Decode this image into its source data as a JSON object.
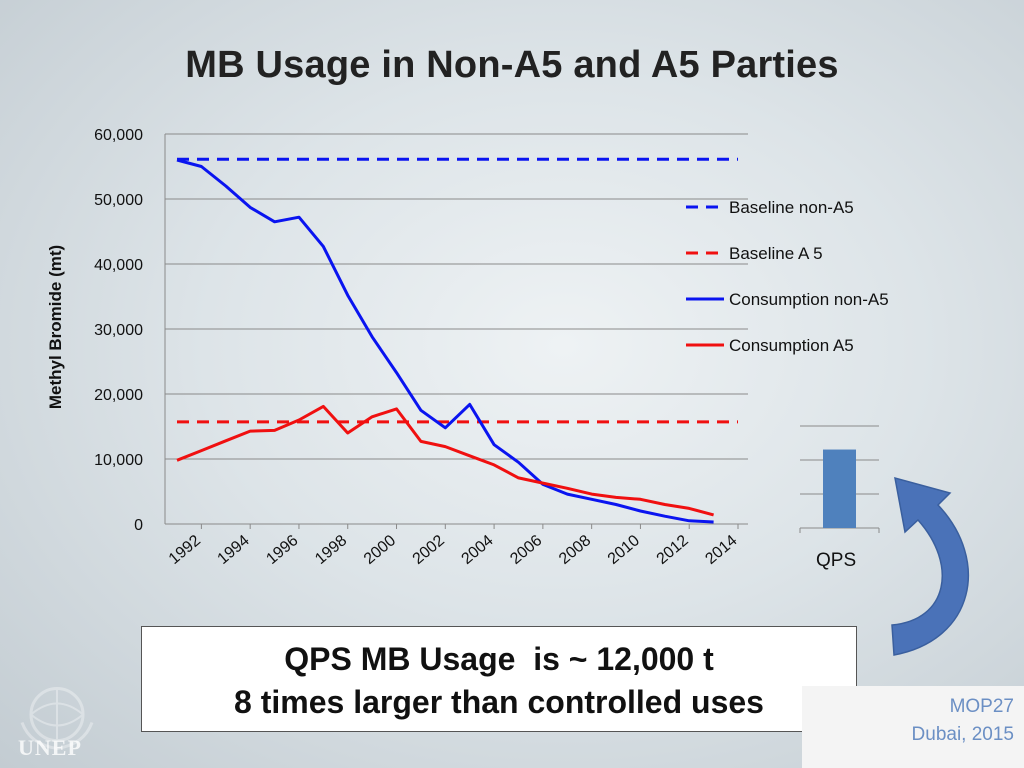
{
  "title": "MB Usage in Non-A5 and A5 Parties",
  "ylabel": "Methyl Bromide (mt)",
  "callout": {
    "line1": "QPS MB Usage  is ~ 12,000 t",
    "line2": "8 times larger than controlled uses"
  },
  "footer": {
    "line1": "MOP27",
    "line2": "Dubai, 2015"
  },
  "logo_text": "UNEP",
  "colors": {
    "blue": "#0a14f0",
    "red": "#f01010",
    "bar": "#4f81bd",
    "arrow": "#4a72b8"
  },
  "chart_data": [
    {
      "type": "line",
      "title": "MB Usage in Non-A5 and A5 Parties",
      "xlabel": "",
      "ylabel": "Methyl Bromide (mt)",
      "x": [
        1991,
        1992,
        1993,
        1994,
        1995,
        1996,
        1997,
        1998,
        1999,
        2000,
        2001,
        2002,
        2003,
        2004,
        2005,
        2006,
        2007,
        2008,
        2009,
        2010,
        2011,
        2012,
        2013,
        2014
      ],
      "x_tick_labels": [
        "1992",
        "1994",
        "1996",
        "1998",
        "2000",
        "2002",
        "2004",
        "2006",
        "2008",
        "2010",
        "2012",
        "2014"
      ],
      "ylim": [
        0,
        60000
      ],
      "y_tick_labels": [
        "0",
        "10,000",
        "20,000",
        "30,000",
        "40,000",
        "50,000",
        "60,000"
      ],
      "grid": true,
      "legend": "right",
      "series": [
        {
          "name": "Baseline non-A5",
          "style": "dashed",
          "color": "#0a14f0",
          "values": [
            56100,
            56100,
            56100,
            56100,
            56100,
            56100,
            56100,
            56100,
            56100,
            56100,
            56100,
            56100,
            56100,
            56100,
            56100,
            56100,
            56100,
            56100,
            56100,
            56100,
            56100,
            56100,
            56100,
            56100
          ]
        },
        {
          "name": "Baseline A 5",
          "style": "dashed",
          "color": "#f01010",
          "values": [
            15700,
            15700,
            15700,
            15700,
            15700,
            15700,
            15700,
            15700,
            15700,
            15700,
            15700,
            15700,
            15700,
            15700,
            15700,
            15700,
            15700,
            15700,
            15700,
            15700,
            15700,
            15700,
            15700,
            15700
          ]
        },
        {
          "name": "Consumption non-A5",
          "style": "solid",
          "color": "#0a14f0",
          "values": [
            56000,
            55000,
            52000,
            48700,
            46500,
            47200,
            42700,
            35200,
            28800,
            23300,
            17500,
            14800,
            18400,
            12200,
            9500,
            6100,
            4600,
            3800,
            3000,
            2000,
            1200,
            500,
            300,
            null
          ]
        },
        {
          "name": "Consumption A5",
          "style": "solid",
          "color": "#f01010",
          "values": [
            9800,
            11300,
            12800,
            14300,
            14400,
            16000,
            18100,
            14000,
            16500,
            17700,
            12700,
            11900,
            10500,
            9100,
            7100,
            6300,
            5500,
            4600,
            4100,
            3800,
            3000,
            2400,
            1400,
            null
          ]
        }
      ]
    },
    {
      "type": "bar",
      "categories": [
        "QPS"
      ],
      "values": [
        12000
      ],
      "ylim": [
        0,
        15600
      ],
      "grid": true,
      "xlabel": "",
      "ylabel": ""
    }
  ]
}
